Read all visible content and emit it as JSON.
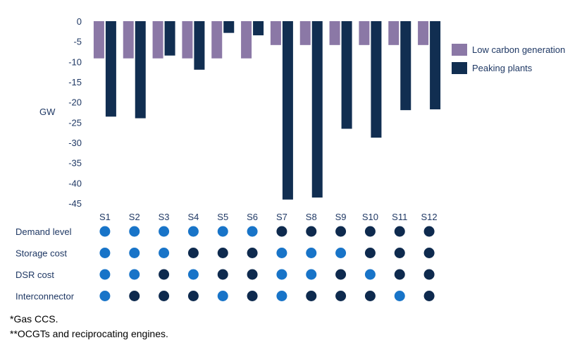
{
  "chart_data": {
    "type": "bar",
    "ylabel": "GW",
    "ylim": [
      -45,
      0
    ],
    "yticks": [
      0,
      -5,
      -10,
      -15,
      -20,
      -25,
      -30,
      -35,
      -40,
      -45
    ],
    "categories": [
      "S1",
      "S2",
      "S3",
      "S4",
      "S5",
      "S6",
      "S7",
      "S8",
      "S9",
      "S10",
      "S11",
      "S12"
    ],
    "series": [
      {
        "name": "Low carbon generation",
        "color": "#8b78a6",
        "values": [
          -9.2,
          -9.2,
          -9.2,
          -9.2,
          -9.2,
          -9.2,
          -5.9,
          -5.9,
          -5.9,
          -5.9,
          -5.9,
          -5.9
        ]
      },
      {
        "name": "Peaking plants",
        "color": "#112e51",
        "values": [
          -23.6,
          -24.0,
          -8.5,
          -12.0,
          -2.9,
          -3.5,
          -44.1,
          -43.6,
          -26.6,
          -28.8,
          -22.0,
          -21.8
        ]
      }
    ],
    "legend_position": "right",
    "grid": false
  },
  "scenario_matrix": {
    "rows": [
      {
        "label": "Demand level",
        "levels": [
          "low",
          "low",
          "low",
          "low",
          "low",
          "low",
          "high",
          "high",
          "high",
          "high",
          "high",
          "high"
        ]
      },
      {
        "label": "Storage cost",
        "levels": [
          "low",
          "low",
          "low",
          "high",
          "high",
          "high",
          "low",
          "low",
          "low",
          "high",
          "high",
          "high"
        ]
      },
      {
        "label": "DSR cost",
        "levels": [
          "low",
          "low",
          "high",
          "low",
          "high",
          "high",
          "low",
          "low",
          "high",
          "low",
          "high",
          "high"
        ]
      },
      {
        "label": "Interconnector",
        "levels": [
          "low",
          "high",
          "high",
          "high",
          "low",
          "high",
          "low",
          "high",
          "high",
          "high",
          "low",
          "high"
        ]
      }
    ],
    "colors": {
      "low": "#1874c8",
      "high": "#0e2a4e"
    }
  },
  "footnotes": [
    "*Gas CCS.",
    "**OCGTs and reciprocating engines."
  ]
}
